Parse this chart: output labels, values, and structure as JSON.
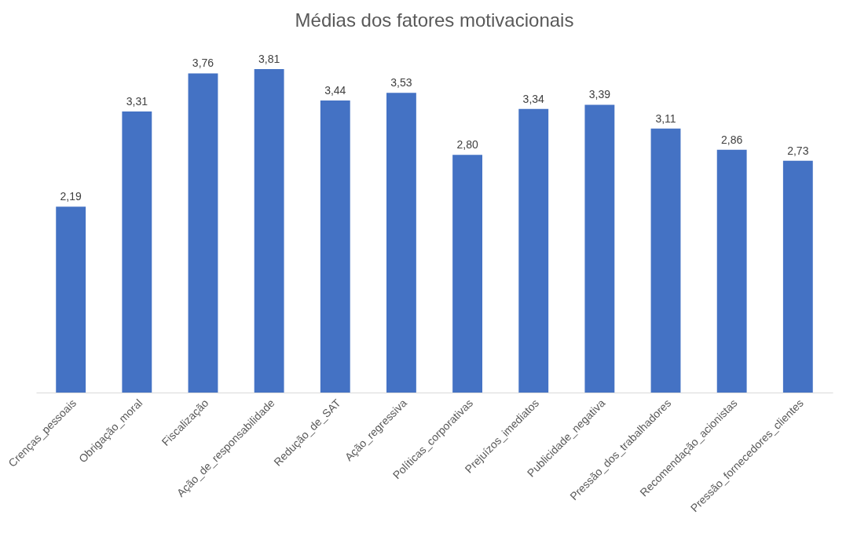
{
  "chart_data": {
    "type": "bar",
    "title": "Médias dos fatores motivacionais",
    "categories": [
      "Crenças_pessoais",
      "Obrigação_moral",
      "Fiscalização",
      "Ação_de_responsabilidade",
      "Redução_de_SAT",
      "Ação_regressiva",
      "Políticas_corporativas",
      "Prejuízos_imediatos",
      "Publicidade_negativa",
      "Pressão_dos_trabalhadores",
      "Recomendação_acionistas",
      "Pressão_fornecedores_clientes"
    ],
    "values": [
      2.19,
      3.31,
      3.76,
      3.81,
      3.44,
      3.53,
      2.8,
      3.34,
      3.39,
      3.11,
      2.86,
      2.73
    ],
    "value_labels": [
      "2,19",
      "3,31",
      "3,76",
      "3,81",
      "3,44",
      "3,53",
      "2,80",
      "3,34",
      "3,39",
      "3,11",
      "2,86",
      "2,73"
    ],
    "color": "#4472c4"
  }
}
